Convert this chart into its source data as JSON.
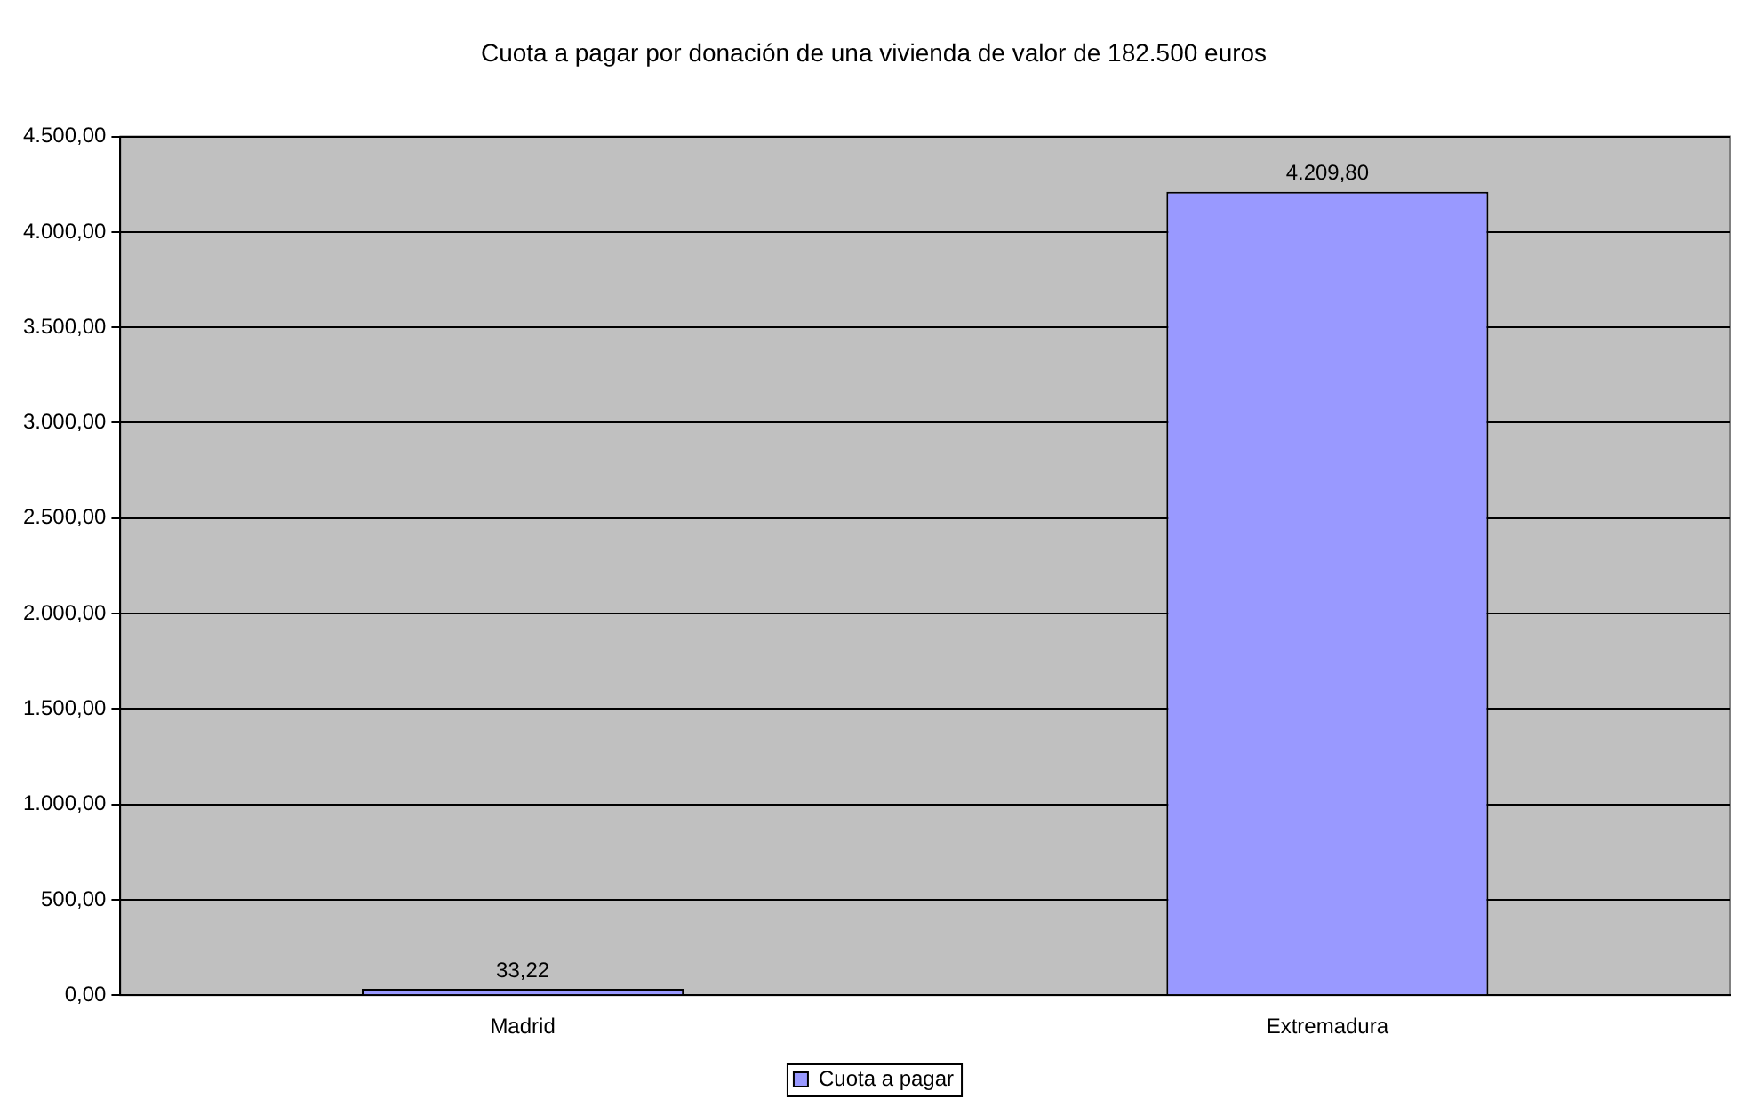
{
  "chart_data": {
    "type": "bar",
    "title": "Cuota a pagar por donación de una vivienda de valor de 182.500 euros",
    "categories": [
      "Madrid",
      "Extremadura"
    ],
    "series": [
      {
        "name": "Cuota a pagar",
        "color": "#9999ff",
        "values": [
          33.22,
          4209.8
        ],
        "value_labels": [
          "33,22",
          "4.209,80"
        ]
      }
    ],
    "ylim": [
      0,
      4500
    ],
    "yticks": [
      {
        "value": 0,
        "label": "0,00"
      },
      {
        "value": 500,
        "label": "500,00"
      },
      {
        "value": 1000,
        "label": "1.000,00"
      },
      {
        "value": 1500,
        "label": "1.500,00"
      },
      {
        "value": 2000,
        "label": "2.000,00"
      },
      {
        "value": 2500,
        "label": "2.500,00"
      },
      {
        "value": 3000,
        "label": "3.000,00"
      },
      {
        "value": 3500,
        "label": "3.500,00"
      },
      {
        "value": 4000,
        "label": "4.000,00"
      },
      {
        "value": 4500,
        "label": "4.500,00"
      }
    ],
    "grid": "y",
    "legend": "bottom"
  }
}
